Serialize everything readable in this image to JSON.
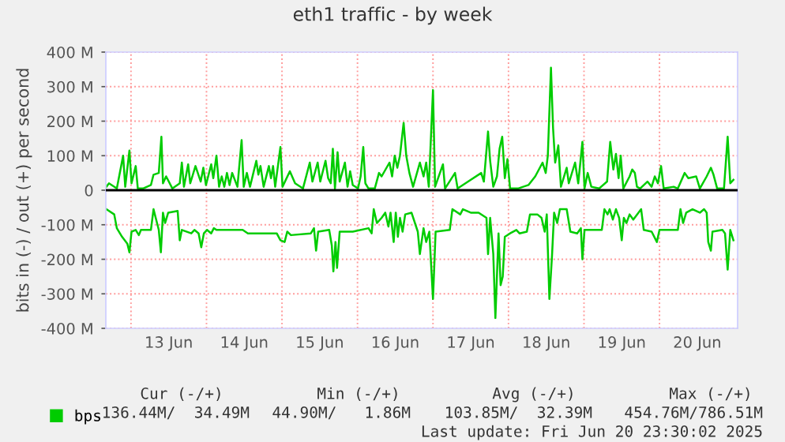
{
  "chart_data": {
    "type": "line",
    "title": "eth1 traffic - by week",
    "ylabel": "bits in (-) / out (+) per second",
    "xlim": [
      "2025-06-12T16:00",
      "2025-06-21T00:50"
    ],
    "xticks": [
      {
        "value": "2025-06-13T12:00",
        "label": "13 Jun"
      },
      {
        "value": "2025-06-14T12:00",
        "label": "14 Jun"
      },
      {
        "value": "2025-06-15T12:00",
        "label": "15 Jun"
      },
      {
        "value": "2025-06-16T12:00",
        "label": "16 Jun"
      },
      {
        "value": "2025-06-17T12:00",
        "label": "17 Jun"
      },
      {
        "value": "2025-06-18T12:00",
        "label": "18 Jun"
      },
      {
        "value": "2025-06-19T12:00",
        "label": "19 Jun"
      },
      {
        "value": "2025-06-20T12:00",
        "label": "20 Jun"
      }
    ],
    "ylim": [
      -400,
      400
    ],
    "yticks": [
      {
        "value": -400,
        "label": "-400 M"
      },
      {
        "value": -300,
        "label": "-300 M"
      },
      {
        "value": -200,
        "label": "-200 M"
      },
      {
        "value": -100,
        "label": "-100 M"
      },
      0,
      {
        "value": 100,
        "label": "100 M"
      },
      {
        "value": 200,
        "label": "200 M"
      },
      {
        "value": 300,
        "label": "300 M"
      },
      {
        "value": 400,
        "label": "400 M"
      }
    ],
    "grid": "y",
    "legend": "bottom left",
    "marker": "none",
    "line_style": "solid",
    "ref_lines": [
      {
        "axis": "y",
        "value": 0,
        "color": "#000000",
        "line_style": "solid"
      },
      {
        "axis": "x",
        "value": "2025-06-13T00:00",
        "color": "#ff9a9a",
        "line_style": "dotted"
      },
      {
        "axis": "x",
        "value": "2025-06-14T00:00",
        "color": "#ff9a9a",
        "line_style": "dotted"
      },
      {
        "axis": "x",
        "value": "2025-06-15T00:00",
        "color": "#ff9a9a",
        "line_style": "dotted"
      },
      {
        "axis": "x",
        "value": "2025-06-16T00:00",
        "color": "#ff9a9a",
        "line_style": "dotted"
      },
      {
        "axis": "x",
        "value": "2025-06-17T00:00",
        "color": "#ff9a9a",
        "line_style": "dotted"
      },
      {
        "axis": "x",
        "value": "2025-06-18T00:00",
        "color": "#ff9a9a",
        "line_style": "dotted"
      },
      {
        "axis": "x",
        "value": "2025-06-19T00:00",
        "color": "#ff9a9a",
        "line_style": "dotted"
      },
      {
        "axis": "x",
        "value": "2025-06-20T00:00",
        "color": "#ff9a9a",
        "line_style": "dotted"
      }
    ],
    "annotations": [
      "Cur (-/+)",
      "Min (-/+)",
      "Avg (-/+)",
      "Max (-/+)",
      "136.44M/  34.49M",
      "44.90M/   1.86M",
      "103.85M/  32.39M",
      "454.76M/786.51M",
      "Last update: Fri Jun 20 23:30:02 2025"
    ],
    "series": [
      {
        "name": "bps",
        "color": "#00cc00",
        "x": [
          "2025-06-12T16:10",
          "2025-06-12T17:00",
          "2025-06-12T19:30",
          "2025-06-12T21:30",
          "2025-06-12T22:10",
          "2025-06-12T23:30",
          "2025-06-13T00:10",
          "2025-06-13T01:30",
          "2025-06-13T02:10",
          "2025-06-13T03:50",
          "2025-06-13T06:20",
          "2025-06-13T07:10",
          "2025-06-13T08:50",
          "2025-06-13T09:40",
          "2025-06-13T10:10",
          "2025-06-13T11:10",
          "2025-06-13T13:10",
          "2025-06-13T15:30",
          "2025-06-13T16:10",
          "2025-06-13T16:50",
          "2025-06-13T18:10",
          "2025-06-13T18:50",
          "2025-06-13T20:30",
          "2025-06-13T22:10",
          "2025-06-13T23:00",
          "2025-06-13T23:50",
          "2025-06-14T01:30",
          "2025-06-14T02:10",
          "2025-06-14T03:10",
          "2025-06-14T04:00",
          "2025-06-14T04:50",
          "2025-06-14T05:40",
          "2025-06-14T06:30",
          "2025-06-14T07:20",
          "2025-06-14T08:10",
          "2025-06-14T09:50",
          "2025-06-14T11:10",
          "2025-06-14T11:50",
          "2025-06-14T12:50",
          "2025-06-14T13:50",
          "2025-06-14T15:50",
          "2025-06-14T16:30",
          "2025-06-14T17:10",
          "2025-06-14T18:10",
          "2025-06-14T19:50",
          "2025-06-14T20:30",
          "2025-06-14T21:10",
          "2025-06-14T21:50",
          "2025-06-14T23:30",
          "2025-06-15T00:10",
          "2025-06-15T02:30",
          "2025-06-15T04:10",
          "2025-06-15T06:40",
          "2025-06-15T08:50",
          "2025-06-15T09:40",
          "2025-06-15T11:20",
          "2025-06-15T12:10",
          "2025-06-15T13:50",
          "2025-06-15T14:40",
          "2025-06-15T15:30",
          "2025-06-15T16:10",
          "2025-06-15T16:50",
          "2025-06-15T17:40",
          "2025-06-15T18:20",
          "2025-06-15T20:00",
          "2025-06-15T20:50",
          "2025-06-15T21:40",
          "2025-06-15T22:30",
          "2025-06-16T00:10",
          "2025-06-16T01:00",
          "2025-06-16T01:50",
          "2025-06-16T02:30",
          "2025-06-16T03:30",
          "2025-06-16T05:30",
          "2025-06-16T06:50",
          "2025-06-16T07:40",
          "2025-06-16T10:10",
          "2025-06-16T11:00",
          "2025-06-16T11:50",
          "2025-06-16T12:40",
          "2025-06-16T13:30",
          "2025-06-16T14:40",
          "2025-06-16T15:30",
          "2025-06-16T16:30",
          "2025-06-16T17:40",
          "2025-06-16T19:50",
          "2025-06-16T21:00",
          "2025-06-16T21:50",
          "2025-06-16T22:40",
          "2025-06-17T00:00",
          "2025-06-17T00:40",
          "2025-06-17T03:10",
          "2025-06-17T03:50",
          "2025-06-17T07:00",
          "2025-06-17T07:50",
          "2025-06-17T11:10",
          "2025-06-17T15:20",
          "2025-06-17T16:10",
          "2025-06-17T17:30",
          "2025-06-17T18:10",
          "2025-06-17T19:10",
          "2025-06-17T20:20",
          "2025-06-17T21:10",
          "2025-06-17T22:00",
          "2025-06-17T22:50",
          "2025-06-17T23:40",
          "2025-06-18T00:30",
          "2025-06-18T03:00",
          "2025-06-18T06:20",
          "2025-06-18T08:30",
          "2025-06-18T10:50",
          "2025-06-18T11:50",
          "2025-06-18T12:30",
          "2025-06-18T13:30",
          "2025-06-18T14:10",
          "2025-06-18T14:50",
          "2025-06-18T15:50",
          "2025-06-18T16:40",
          "2025-06-18T18:30",
          "2025-06-18T19:10",
          "2025-06-18T21:10",
          "2025-06-18T22:10",
          "2025-06-18T23:30",
          "2025-06-19T00:10",
          "2025-06-19T01:10",
          "2025-06-19T02:20",
          "2025-06-19T04:50",
          "2025-06-19T07:20",
          "2025-06-19T08:20",
          "2025-06-19T09:20",
          "2025-06-19T10:10",
          "2025-06-19T11:00",
          "2025-06-19T11:40",
          "2025-06-19T12:30",
          "2025-06-19T14:30",
          "2025-06-19T15:20",
          "2025-06-19T16:10",
          "2025-06-19T16:50",
          "2025-06-19T17:50",
          "2025-06-19T20:10",
          "2025-06-19T21:30",
          "2025-06-19T22:30",
          "2025-06-19T23:30",
          "2025-06-20T00:30",
          "2025-06-20T01:20",
          "2025-06-20T04:30",
          "2025-06-20T05:50",
          "2025-06-20T08:00",
          "2025-06-20T09:10",
          "2025-06-20T11:40",
          "2025-06-20T12:50",
          "2025-06-20T15:00",
          "2025-06-20T16:20",
          "2025-06-20T17:10",
          "2025-06-20T18:20",
          "2025-06-20T20:30",
          "2025-06-20T21:40",
          "2025-06-20T22:30",
          "2025-06-20T23:30"
        ],
        "values": [
          10,
          20,
          5,
          100,
          10,
          115,
          20,
          70,
          5,
          5,
          15,
          45,
          50,
          155,
          20,
          40,
          5,
          20,
          80,
          10,
          75,
          20,
          70,
          25,
          65,
          15,
          75,
          35,
          100,
          10,
          40,
          10,
          50,
          15,
          50,
          10,
          145,
          10,
          50,
          10,
          85,
          45,
          70,
          10,
          70,
          35,
          70,
          10,
          125,
          10,
          55,
          20,
          5,
          80,
          25,
          80,
          25,
          85,
          35,
          20,
          120,
          5,
          110,
          25,
          80,
          10,
          55,
          15,
          5,
          40,
          125,
          20,
          5,
          5,
          50,
          40,
          80,
          40,
          100,
          65,
          100,
          195,
          100,
          50,
          10,
          80,
          40,
          80,
          10,
          290,
          10,
          75,
          5,
          50,
          5,
          25,
          50,
          25,
          170,
          85,
          10,
          40,
          120,
          155,
          35,
          90,
          5,
          5,
          15,
          40,
          80,
          50,
          100,
          355,
          180,
          80,
          130,
          10,
          65,
          20,
          80,
          20,
          140,
          5,
          50,
          10,
          5,
          25,
          140,
          60,
          105,
          35,
          100,
          5,
          40,
          60,
          50,
          10,
          5,
          25,
          10,
          40,
          20,
          70,
          5,
          10,
          5,
          50,
          35,
          40,
          5,
          40,
          65,
          45,
          5,
          5,
          155,
          20,
          30
        ]
      },
      {
        "color": "#00cc00",
        "x": [
          "2025-06-12T16:10",
          "2025-06-12T18:40",
          "2025-06-12T19:30",
          "2025-06-12T21:10",
          "2025-06-12T22:50",
          "2025-06-12T23:30",
          "2025-06-13T00:10",
          "2025-06-13T01:30",
          "2025-06-13T02:30",
          "2025-06-13T03:10",
          "2025-06-13T06:20",
          "2025-06-13T07:10",
          "2025-06-13T08:00",
          "2025-06-13T08:50",
          "2025-06-13T09:30",
          "2025-06-13T10:10",
          "2025-06-13T10:50",
          "2025-06-13T11:50",
          "2025-06-13T14:50",
          "2025-06-13T15:30",
          "2025-06-13T16:10",
          "2025-06-13T19:10",
          "2025-06-13T20:10",
          "2025-06-13T21:30",
          "2025-06-13T22:20",
          "2025-06-13T23:10",
          "2025-06-14T00:10",
          "2025-06-14T01:30",
          "2025-06-14T02:20",
          "2025-06-14T03:10",
          "2025-06-14T11:30",
          "2025-06-14T13:10",
          "2025-06-14T22:20",
          "2025-06-14T23:30",
          "2025-06-15T00:50",
          "2025-06-15T01:40",
          "2025-06-15T02:50",
          "2025-06-15T09:10",
          "2025-06-15T10:10",
          "2025-06-15T10:50",
          "2025-06-15T11:30",
          "2025-06-15T15:00",
          "2025-06-15T15:50",
          "2025-06-15T16:20",
          "2025-06-15T17:00",
          "2025-06-15T17:30",
          "2025-06-15T18:20",
          "2025-06-15T22:30",
          "2025-06-16T03:30",
          "2025-06-16T04:30",
          "2025-06-16T05:10",
          "2025-06-16T06:10",
          "2025-06-16T07:40",
          "2025-06-16T08:50",
          "2025-06-16T09:50",
          "2025-06-16T10:30",
          "2025-06-16T11:30",
          "2025-06-16T12:10",
          "2025-06-16T12:50",
          "2025-06-16T13:30",
          "2025-06-16T14:20",
          "2025-06-16T15:10",
          "2025-06-16T17:10",
          "2025-06-16T19:10",
          "2025-06-16T19:50",
          "2025-06-16T21:00",
          "2025-06-16T21:50",
          "2025-06-16T22:50",
          "2025-06-17T00:00",
          "2025-06-17T00:50",
          "2025-06-17T05:20",
          "2025-06-17T06:10",
          "2025-06-17T08:40",
          "2025-06-17T09:30",
          "2025-06-17T12:00",
          "2025-06-17T14:30",
          "2025-06-17T17:00",
          "2025-06-17T17:30",
          "2025-06-17T18:10",
          "2025-06-17T19:10",
          "2025-06-17T19:50",
          "2025-06-17T20:50",
          "2025-06-17T21:30",
          "2025-06-17T22:10",
          "2025-06-17T22:50",
          "2025-06-18T00:30",
          "2025-06-18T02:30",
          "2025-06-18T03:30",
          "2025-06-18T05:50",
          "2025-06-18T06:50",
          "2025-06-18T09:10",
          "2025-06-18T10:30",
          "2025-06-18T11:30",
          "2025-06-18T12:10",
          "2025-06-18T13:00",
          "2025-06-18T13:50",
          "2025-06-18T14:30",
          "2025-06-18T15:30",
          "2025-06-18T16:20",
          "2025-06-18T18:30",
          "2025-06-18T19:40",
          "2025-06-18T21:50",
          "2025-06-18T23:00",
          "2025-06-18T23:30",
          "2025-06-19T00:10",
          "2025-06-19T05:40",
          "2025-06-19T06:30",
          "2025-06-19T07:30",
          "2025-06-19T08:10",
          "2025-06-19T09:10",
          "2025-06-19T10:10",
          "2025-06-19T11:10",
          "2025-06-19T12:00",
          "2025-06-19T12:40",
          "2025-06-19T13:30",
          "2025-06-19T14:30",
          "2025-06-19T15:40",
          "2025-06-19T18:10",
          "2025-06-19T19:00",
          "2025-06-19T21:30",
          "2025-06-19T23:10",
          "2025-06-20T00:00",
          "2025-06-20T05:50",
          "2025-06-20T06:40",
          "2025-06-20T07:30",
          "2025-06-20T08:30",
          "2025-06-20T10:30",
          "2025-06-20T12:50",
          "2025-06-20T14:10",
          "2025-06-20T15:00",
          "2025-06-20T15:30",
          "2025-06-20T16:20",
          "2025-06-20T16:50",
          "2025-06-20T20:00",
          "2025-06-20T20:50",
          "2025-06-20T21:40",
          "2025-06-20T22:30",
          "2025-06-20T23:30"
        ],
        "values": [
          -55,
          -70,
          -110,
          -135,
          -155,
          -180,
          -120,
          -115,
          -130,
          -115,
          -115,
          -55,
          -85,
          -115,
          -180,
          -65,
          -95,
          -65,
          -60,
          -145,
          -115,
          -125,
          -115,
          -125,
          -165,
          -125,
          -115,
          -125,
          -110,
          -115,
          -115,
          -125,
          -125,
          -145,
          -150,
          -120,
          -130,
          -125,
          -110,
          -175,
          -120,
          -115,
          -160,
          -235,
          -150,
          -225,
          -120,
          -120,
          -110,
          -125,
          -55,
          -95,
          -80,
          -65,
          -105,
          -65,
          -150,
          -65,
          -135,
          -80,
          -120,
          -70,
          -65,
          -120,
          -185,
          -110,
          -150,
          -120,
          -315,
          -120,
          -115,
          -55,
          -70,
          -55,
          -65,
          -65,
          -80,
          -185,
          -80,
          -185,
          -370,
          -125,
          -275,
          -250,
          -135,
          -125,
          -115,
          -125,
          -120,
          -70,
          -70,
          -80,
          -120,
          -70,
          -315,
          -190,
          -65,
          -95,
          -55,
          -55,
          -120,
          -125,
          -110,
          -200,
          -115,
          -115,
          -55,
          -70,
          -55,
          -85,
          -55,
          -80,
          -145,
          -80,
          -95,
          -70,
          -85,
          -55,
          -115,
          -120,
          -150,
          -115,
          -115,
          -55,
          -95,
          -65,
          -55,
          -65,
          -55,
          -65,
          -150,
          -175,
          -120,
          -115,
          -125,
          -230,
          -115,
          -145
        ]
      }
    ]
  }
}
